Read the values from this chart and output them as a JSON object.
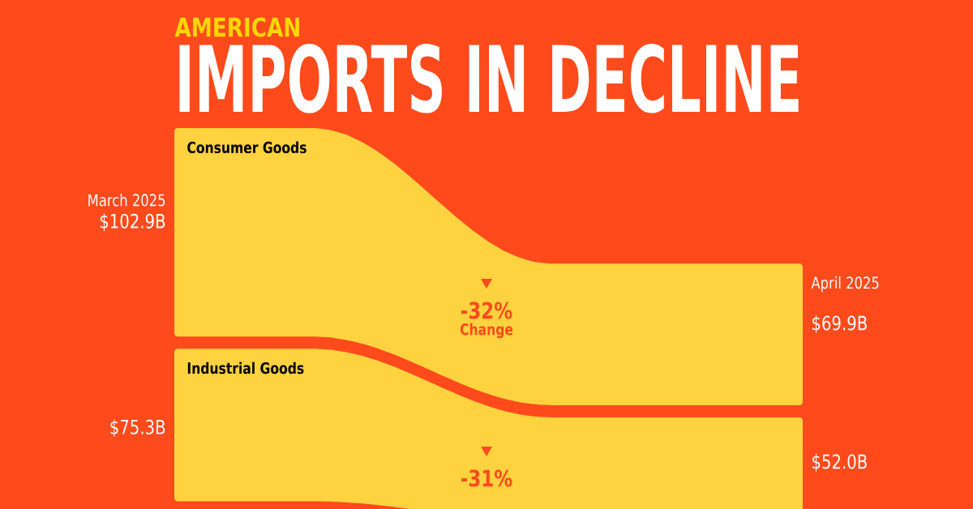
{
  "chart_data": {
    "type": "other",
    "subtitle": "AMERICAN",
    "title": "IMPORTS IN DECLINE",
    "categories": [
      "March 2025",
      "April 2025"
    ],
    "series": [
      {
        "name": "Consumer Goods",
        "values": [
          102.9,
          69.9
        ],
        "value_labels": [
          "$102.9B",
          "$69.9B"
        ]
      },
      {
        "name": "Industrial Goods",
        "values": [
          75.3,
          52.0
        ],
        "value_labels": [
          "$75.3B",
          "$52.0B"
        ]
      }
    ],
    "annotations": [
      "-32%",
      "Change",
      "-31%"
    ]
  }
}
